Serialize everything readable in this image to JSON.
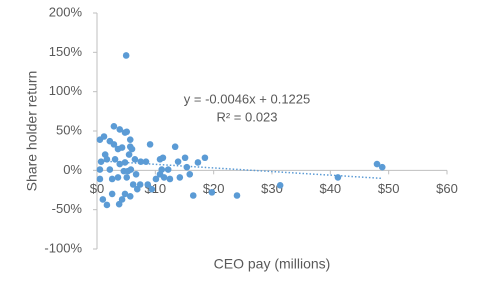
{
  "chart_data": {
    "type": "scatter",
    "x_label": "CEO pay (millions)",
    "y_label": "Share holder return",
    "annotations": [
      "y = -0.0046x + 0.1225",
      "R² = 0.023"
    ],
    "trendline": {
      "slope": -0.0046,
      "intercept": 0.1225
    },
    "color": "#5b9bd5",
    "xlim": [
      0,
      60
    ],
    "ylim": [
      -1,
      2
    ],
    "xticks": [
      {
        "value": 0,
        "label": "$0"
      },
      {
        "value": 10,
        "label": "$10"
      },
      {
        "value": 20,
        "label": "$20"
      },
      {
        "value": 30,
        "label": "$30"
      },
      {
        "value": 40,
        "label": "$40"
      },
      {
        "value": 50,
        "label": "$50"
      },
      {
        "value": 60,
        "label": "$60"
      }
    ],
    "yticks": [
      {
        "value": -1,
        "label": "-100%"
      },
      {
        "value": -0.5,
        "label": "-50%"
      },
      {
        "value": 0,
        "label": "0%"
      },
      {
        "value": 0.5,
        "label": "50%"
      },
      {
        "value": 1,
        "label": "100%"
      },
      {
        "value": 1.5,
        "label": "150%"
      },
      {
        "value": 2,
        "label": "200%"
      }
    ],
    "x": [
      5.0,
      41.3,
      48.0,
      48.9,
      31.4,
      24.0,
      19.7,
      16.5,
      18.5,
      17.3,
      15.4,
      15.1,
      13.9,
      13.4,
      12.2,
      11.1,
      10.8,
      11.3,
      9.1,
      8.4,
      9.4,
      8.7,
      10.1,
      10.8,
      11.5,
      12.5,
      14.2,
      15.9,
      7.5,
      7.4,
      0.5,
      1.2,
      2.2,
      2.9,
      3.9,
      4.8,
      5.1,
      4.3,
      3.6,
      5.7,
      6.0,
      5.5,
      1.4,
      0.5,
      0.5,
      1.0,
      1.7,
      2.6,
      3.8,
      4.3,
      4.8,
      5.7,
      2.6,
      3.1,
      3.9,
      4.6,
      5.1,
      5.8,
      6.5,
      6.7,
      3.6,
      2.2,
      1.7,
      0.7,
      2.9,
      5.7,
      4.8,
      6.2,
      6.9,
      5.3
    ],
    "values": [
      1.46,
      -0.09,
      0.08,
      0.04,
      -0.19,
      -0.32,
      -0.28,
      -0.32,
      0.16,
      0.1,
      0.04,
      0.16,
      0.11,
      0.3,
      0.01,
      0.01,
      0.14,
      0.16,
      0.33,
      0.11,
      -0.24,
      -0.18,
      -0.11,
      -0.05,
      -0.09,
      -0.11,
      -0.09,
      -0.05,
      0.11,
      -0.18,
      0.39,
      0.43,
      0.37,
      0.56,
      0.52,
      0.48,
      0.49,
      0.29,
      0.27,
      0.3,
      0.27,
      0.2,
      0.2,
      0.01,
      -0.11,
      -0.37,
      -0.44,
      -0.3,
      -0.43,
      -0.37,
      -0.3,
      -0.33,
      -0.11,
      0.14,
      0.08,
      -0.01,
      -0.09,
      0.01,
      0.14,
      -0.05,
      -0.09,
      0.01,
      0.14,
      0.11,
      0.33,
      0.39,
      0.1,
      -0.18,
      -0.24,
      -0.01
    ]
  }
}
